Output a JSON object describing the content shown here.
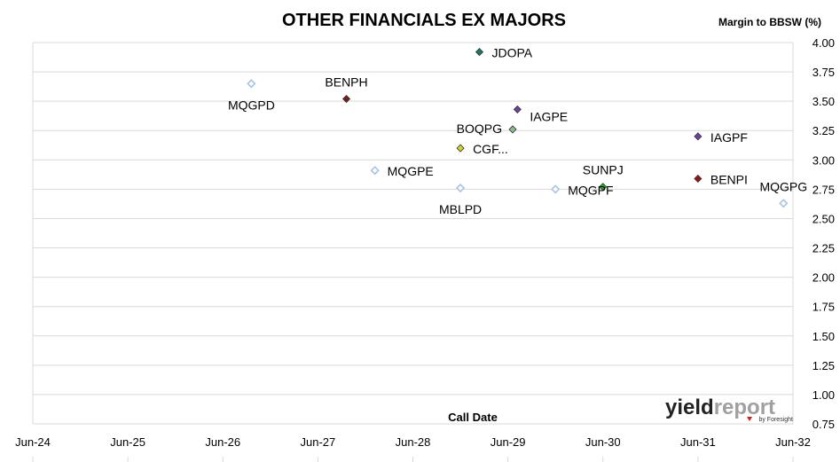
{
  "chart_data": {
    "type": "scatter",
    "title": "OTHER FINANCIALS EX MAJORS",
    "ylabel": "Margin to BBSW (%)",
    "xlabel": "Call Date",
    "ylim": [
      0.75,
      4.0
    ],
    "yticks": [
      "4.00",
      "3.75",
      "3.50",
      "3.25",
      "3.00",
      "2.75",
      "2.50",
      "2.25",
      "2.00",
      "1.75",
      "1.50",
      "1.25",
      "1.00",
      "0.75"
    ],
    "xlim": [
      2024.5,
      2032.5
    ],
    "xticks": [
      "Jun-24",
      "Jun-25",
      "Jun-26",
      "Jun-27",
      "Jun-28",
      "Jun-29",
      "Jun-30",
      "Jun-31",
      "Jun-32"
    ],
    "grid": true,
    "legend": "none",
    "points": [
      {
        "label": "JDOPA",
        "x": 2029.2,
        "y": 3.92,
        "color": "#1a7a6a",
        "filled": true,
        "label_pos": "right"
      },
      {
        "label": "MQGPD",
        "x": 2026.8,
        "y": 3.65,
        "color": "#a8c4e4",
        "filled": false,
        "label_pos": "below-left"
      },
      {
        "label": "BENPH",
        "x": 2027.8,
        "y": 3.52,
        "color": "#7a1a1a",
        "filled": true,
        "label_pos": "above"
      },
      {
        "label": "IAGPE",
        "x": 2029.6,
        "y": 3.43,
        "color": "#7040a0",
        "filled": true,
        "label_pos": "below-right"
      },
      {
        "label": "BOQPG",
        "x": 2029.55,
        "y": 3.26,
        "color": "#8fbc8f",
        "filled": true,
        "label_pos": "left"
      },
      {
        "label": "IAGPF",
        "x": 2031.5,
        "y": 3.2,
        "color": "#7040a0",
        "filled": true,
        "label_pos": "right"
      },
      {
        "label": "CGF...",
        "x": 2029.0,
        "y": 3.1,
        "color": "#d4d430",
        "filled": true,
        "label_pos": "right"
      },
      {
        "label": "MQGPE",
        "x": 2028.1,
        "y": 2.91,
        "color": "#a8c4e4",
        "filled": false,
        "label_pos": "right"
      },
      {
        "label": "BENPI",
        "x": 2031.5,
        "y": 2.84,
        "color": "#a01010",
        "filled": true,
        "label_pos": "right"
      },
      {
        "label": "SUNPJ",
        "x": 2030.5,
        "y": 2.77,
        "color": "#20b020",
        "filled": true,
        "label_pos": "above"
      },
      {
        "label": "MBLPD",
        "x": 2029.0,
        "y": 2.76,
        "color": "#a8c4e4",
        "filled": false,
        "label_pos": "below"
      },
      {
        "label": "MQGPF",
        "x": 2030.0,
        "y": 2.75,
        "color": "#a8c4e4",
        "filled": false,
        "label_pos": "right"
      },
      {
        "label": "MQGPG",
        "x": 2032.4,
        "y": 2.63,
        "color": "#a8c4e4",
        "filled": false,
        "label_pos": "above"
      }
    ]
  },
  "logo": {
    "main_a": "yield",
    "main_b": "report",
    "sub": "by Foresight",
    "color_a": "#222222",
    "color_b": "#a0a0a0",
    "accent": "#d02020"
  }
}
